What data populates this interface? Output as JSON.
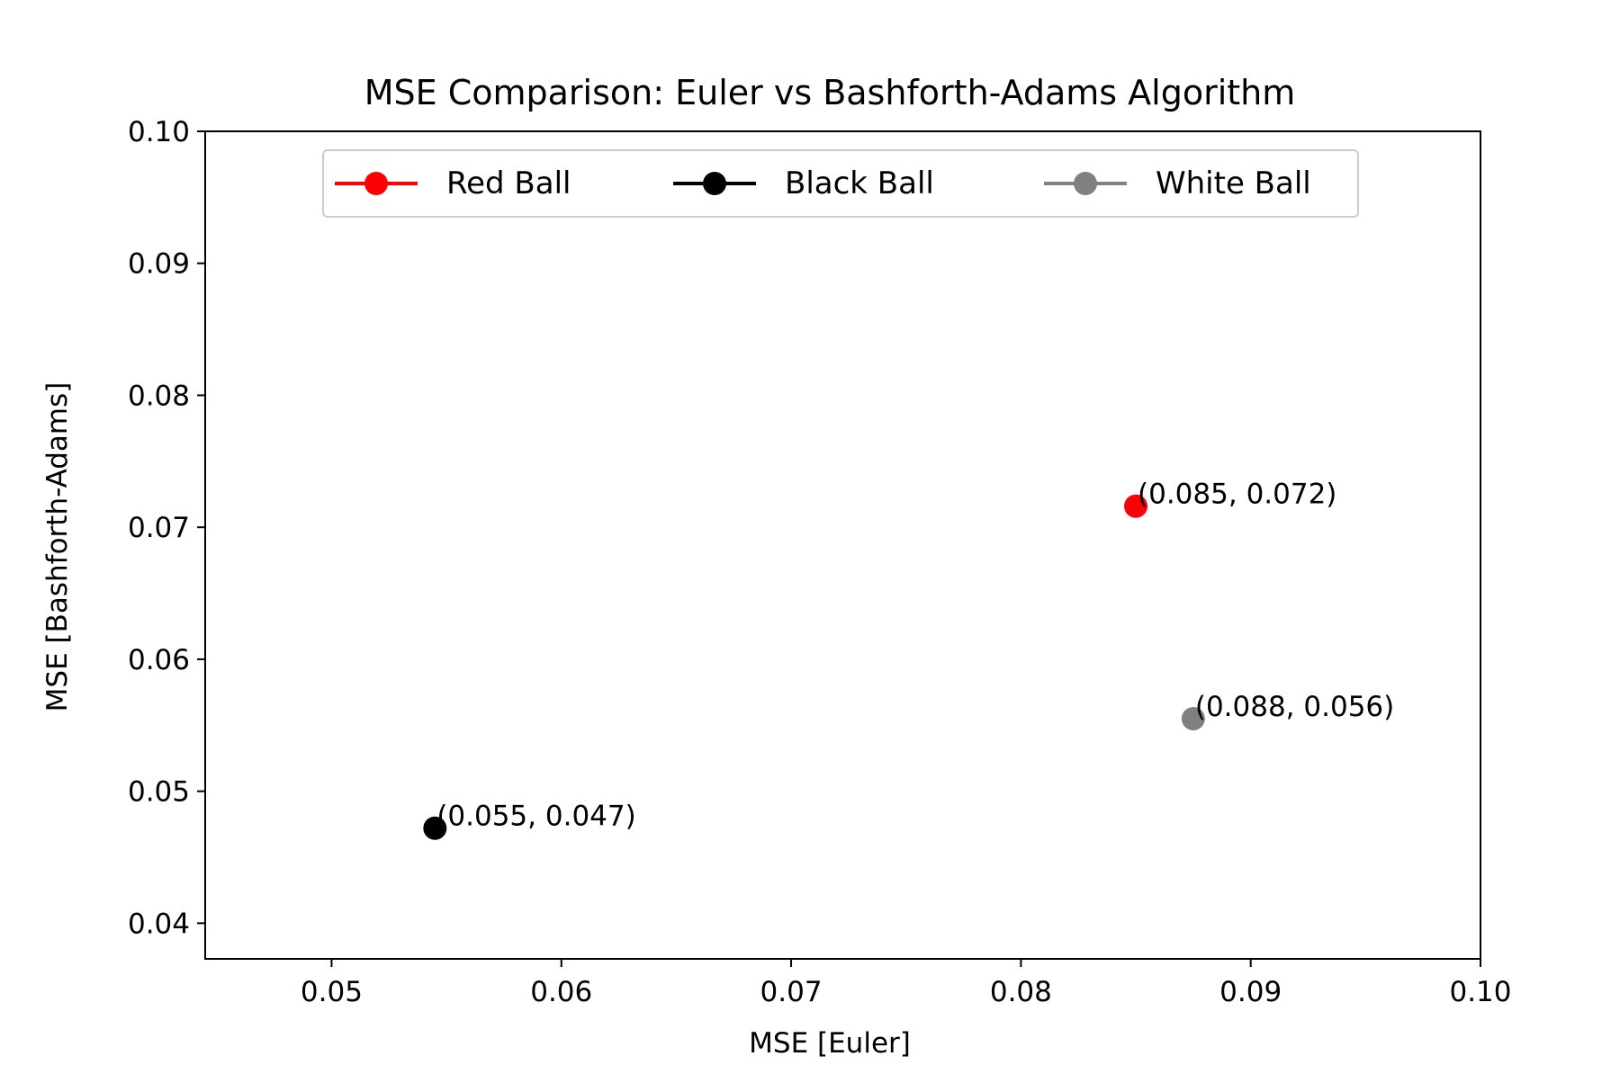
{
  "chart_data": {
    "type": "scatter",
    "title": "MSE Comparison: Euler vs Bashforth-Adams Algorithm",
    "xlabel": "MSE [Euler]",
    "ylabel": "MSE [Bashforth-Adams]",
    "xlim": [
      0.0445,
      0.1
    ],
    "ylim": [
      0.0373,
      0.1
    ],
    "xticks": [
      "0.05",
      "0.06",
      "0.07",
      "0.08",
      "0.09",
      "0.10"
    ],
    "yticks": [
      "0.04",
      "0.05",
      "0.06",
      "0.07",
      "0.08",
      "0.09",
      "0.10"
    ],
    "grid": false,
    "legend_position": "top-center",
    "series": [
      {
        "name": "Red Ball",
        "color": "#ff0000",
        "x": [
          0.085
        ],
        "y": [
          0.0716
        ],
        "labels": [
          "(0.085, 0.072)"
        ]
      },
      {
        "name": "Black Ball",
        "color": "#000000",
        "x": [
          0.0545
        ],
        "y": [
          0.0472
        ],
        "labels": [
          "(0.055, 0.047)"
        ]
      },
      {
        "name": "White Ball",
        "color": "#808080",
        "x": [
          0.0875
        ],
        "y": [
          0.0555
        ],
        "labels": [
          "(0.088, 0.056)"
        ]
      }
    ]
  }
}
